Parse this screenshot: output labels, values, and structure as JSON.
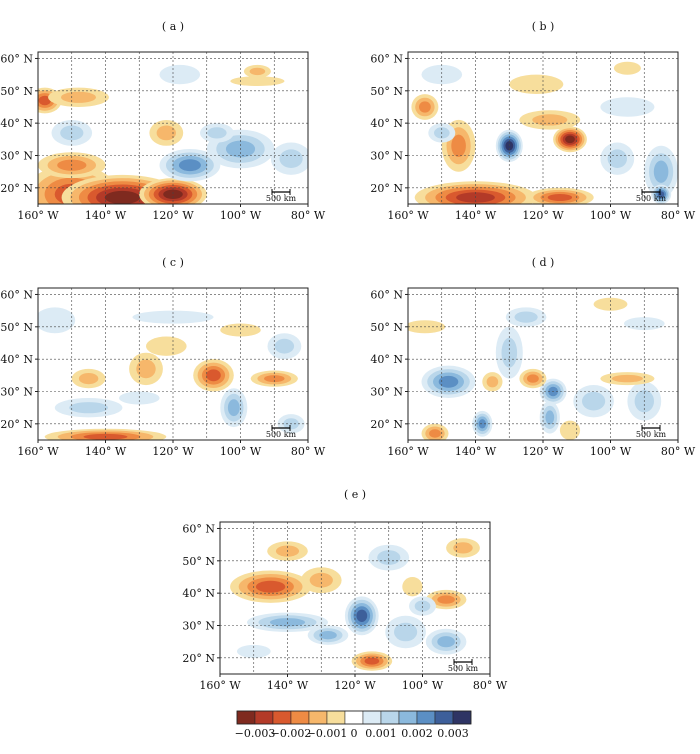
{
  "colors": {
    "frame": "#222222",
    "grid": "#444444",
    "page": "#ffffff"
  },
  "x_ticks": [
    "160° W",
    "140° W",
    "120° W",
    "100° W",
    "80° W"
  ],
  "y_ticks": [
    "60° N",
    "50° N",
    "40° N",
    "30° N",
    "20° N"
  ],
  "scale_bar_label": "500 km",
  "panels": [
    {
      "id": "a",
      "label": "( a )"
    },
    {
      "id": "b",
      "label": "( b )"
    },
    {
      "id": "c",
      "label": "( c )"
    },
    {
      "id": "d",
      "label": "( d )"
    },
    {
      "id": "e",
      "label": "( e )"
    }
  ],
  "colorbar": {
    "colors": [
      "#7f2a1f",
      "#b33a28",
      "#d9592e",
      "#ee8b44",
      "#f6b76b",
      "#f7de9c",
      "#ffffff",
      "#dcebf5",
      "#b9d6ea",
      "#8bb9dd",
      "#5b8fc4",
      "#3d5f9a",
      "#2e3464"
    ],
    "tick_labels": [
      "−0.003",
      "−0.002",
      "−0.001",
      "0",
      "0.001",
      "0.002",
      "0.003"
    ]
  },
  "blobs": {
    "a": [
      {
        "lon": -150,
        "lat": 18,
        "r": 14,
        "rx": 9,
        "v": -0.002
      },
      {
        "lon": -135,
        "lat": 17,
        "r": 18,
        "rx": 7,
        "v": -0.003
      },
      {
        "lon": -120,
        "lat": 18,
        "r": 10,
        "rx": 5,
        "v": -0.003
      },
      {
        "lon": -150,
        "lat": 27,
        "r": 10,
        "rx": 4,
        "v": -0.0015
      },
      {
        "lon": -158,
        "lat": 47,
        "r": 5,
        "rx": 4,
        "v": -0.002
      },
      {
        "lon": -148,
        "lat": 48,
        "r": 9,
        "rx": 3,
        "v": -0.001
      },
      {
        "lon": -122,
        "lat": 37,
        "r": 5,
        "rx": 4,
        "v": -0.001
      },
      {
        "lon": -95,
        "lat": 56,
        "r": 4,
        "rx": 2,
        "v": -0.0008
      },
      {
        "lon": -95,
        "lat": 53,
        "r": 8,
        "rx": 1.5,
        "v": -0.0005
      },
      {
        "lon": -150,
        "lat": 37,
        "r": 6,
        "rx": 4,
        "v": 0.0012
      },
      {
        "lon": -115,
        "lat": 27,
        "r": 9,
        "rx": 5,
        "v": 0.0018
      },
      {
        "lon": -100,
        "lat": 32,
        "r": 10,
        "rx": 6,
        "v": 0.0014
      },
      {
        "lon": -107,
        "lat": 37,
        "r": 5,
        "rx": 3,
        "v": 0.0012
      },
      {
        "lon": -85,
        "lat": 29,
        "r": 6,
        "rx": 5,
        "v": 0.001
      },
      {
        "lon": -118,
        "lat": 55,
        "r": 6,
        "rx": 3,
        "v": 0.0005
      }
    ],
    "b": [
      {
        "lon": -140,
        "lat": 17,
        "r": 18,
        "rx": 5,
        "v": -0.0025
      },
      {
        "lon": -115,
        "lat": 17,
        "r": 10,
        "rx": 3,
        "v": -0.002
      },
      {
        "lon": -145,
        "lat": 33,
        "r": 5,
        "rx": 8,
        "v": -0.0015
      },
      {
        "lon": -155,
        "lat": 45,
        "r": 4,
        "rx": 4,
        "v": -0.0015
      },
      {
        "lon": -112,
        "lat": 35,
        "r": 5,
        "rx": 4,
        "v": -0.003
      },
      {
        "lon": -118,
        "lat": 41,
        "r": 9,
        "rx": 3,
        "v": -0.001
      },
      {
        "lon": -122,
        "lat": 52,
        "r": 8,
        "rx": 3,
        "v": -0.0006
      },
      {
        "lon": -95,
        "lat": 57,
        "r": 4,
        "rx": 2,
        "v": -0.0006
      },
      {
        "lon": -130,
        "lat": 33,
        "r": 4,
        "rx": 5,
        "v": 0.003
      },
      {
        "lon": -98,
        "lat": 29,
        "r": 5,
        "rx": 5,
        "v": 0.0012
      },
      {
        "lon": -85,
        "lat": 25,
        "r": 5,
        "rx": 8,
        "v": 0.0016
      },
      {
        "lon": -85,
        "lat": 18,
        "r": 3,
        "rx": 3,
        "v": 0.0025
      },
      {
        "lon": -150,
        "lat": 37,
        "r": 4,
        "rx": 3,
        "v": 0.0008
      },
      {
        "lon": -95,
        "lat": 45,
        "r": 8,
        "rx": 3,
        "v": 0.0005
      },
      {
        "lon": -150,
        "lat": 55,
        "r": 6,
        "rx": 3,
        "v": 0.0005
      }
    ],
    "c": [
      {
        "lon": -140,
        "lat": 16,
        "r": 18,
        "rx": 2.5,
        "v": -0.002
      },
      {
        "lon": -108,
        "lat": 35,
        "r": 6,
        "rx": 5,
        "v": -0.0022
      },
      {
        "lon": -90,
        "lat": 34,
        "r": 7,
        "rx": 2.5,
        "v": -0.0015
      },
      {
        "lon": -128,
        "lat": 37,
        "r": 5,
        "rx": 5,
        "v": -0.001
      },
      {
        "lon": -145,
        "lat": 34,
        "r": 5,
        "rx": 3,
        "v": -0.0008
      },
      {
        "lon": -122,
        "lat": 44,
        "r": 6,
        "rx": 3,
        "v": -0.0007
      },
      {
        "lon": -100,
        "lat": 49,
        "r": 6,
        "rx": 2,
        "v": -0.0005
      },
      {
        "lon": -102,
        "lat": 25,
        "r": 4,
        "rx": 6,
        "v": 0.0015
      },
      {
        "lon": -145,
        "lat": 25,
        "r": 10,
        "rx": 3,
        "v": 0.0008
      },
      {
        "lon": -155,
        "lat": 52,
        "r": 6,
        "rx": 4,
        "v": 0.0007
      },
      {
        "lon": -120,
        "lat": 53,
        "r": 12,
        "rx": 2,
        "v": 0.0005
      },
      {
        "lon": -87,
        "lat": 44,
        "r": 5,
        "rx": 4,
        "v": 0.0008
      },
      {
        "lon": -130,
        "lat": 28,
        "r": 6,
        "rx": 2,
        "v": 0.0007
      },
      {
        "lon": -85,
        "lat": 20,
        "r": 4,
        "rx": 3,
        "v": 0.0008
      }
    ],
    "d": [
      {
        "lon": -148,
        "lat": 33,
        "r": 8,
        "rx": 5,
        "v": 0.0018
      },
      {
        "lon": -117,
        "lat": 30,
        "r": 4,
        "rx": 4,
        "v": 0.0022
      },
      {
        "lon": -118,
        "lat": 22,
        "r": 3,
        "rx": 5,
        "v": 0.0015
      },
      {
        "lon": -138,
        "lat": 20,
        "r": 3,
        "rx": 4,
        "v": 0.0018
      },
      {
        "lon": -130,
        "lat": 42,
        "r": 4,
        "rx": 8,
        "v": 0.001
      },
      {
        "lon": -105,
        "lat": 27,
        "r": 6,
        "rx": 5,
        "v": 0.0012
      },
      {
        "lon": -90,
        "lat": 27,
        "r": 5,
        "rx": 6,
        "v": 0.0008
      },
      {
        "lon": -125,
        "lat": 53,
        "r": 6,
        "rx": 3,
        "v": 0.0008
      },
      {
        "lon": -90,
        "lat": 51,
        "r": 6,
        "rx": 2,
        "v": 0.0006
      },
      {
        "lon": -152,
        "lat": 17,
        "r": 4,
        "rx": 3,
        "v": -0.0015
      },
      {
        "lon": -123,
        "lat": 34,
        "r": 4,
        "rx": 3,
        "v": -0.0015
      },
      {
        "lon": -95,
        "lat": 34,
        "r": 8,
        "rx": 2,
        "v": -0.0012
      },
      {
        "lon": -135,
        "lat": 33,
        "r": 3,
        "rx": 3,
        "v": -0.0008
      },
      {
        "lon": -155,
        "lat": 50,
        "r": 6,
        "rx": 2,
        "v": -0.0007
      },
      {
        "lon": -100,
        "lat": 57,
        "r": 5,
        "rx": 2,
        "v": -0.0006
      },
      {
        "lon": -112,
        "lat": 18,
        "r": 3,
        "rx": 3,
        "v": -0.0007
      }
    ],
    "e": [
      {
        "lon": -145,
        "lat": 42,
        "r": 12,
        "rx": 5,
        "v": -0.0018
      },
      {
        "lon": -130,
        "lat": 44,
        "r": 6,
        "rx": 4,
        "v": -0.0009
      },
      {
        "lon": -115,
        "lat": 19,
        "r": 6,
        "rx": 3,
        "v": -0.002
      },
      {
        "lon": -93,
        "lat": 38,
        "r": 6,
        "rx": 3,
        "v": -0.0015
      },
      {
        "lon": -140,
        "lat": 53,
        "r": 6,
        "rx": 3,
        "v": -0.0008
      },
      {
        "lon": -88,
        "lat": 54,
        "r": 5,
        "rx": 3,
        "v": -0.0008
      },
      {
        "lon": -103,
        "lat": 42,
        "r": 3,
        "rx": 3,
        "v": -0.0007
      },
      {
        "lon": -118,
        "lat": 33,
        "r": 5,
        "rx": 6,
        "v": 0.0026
      },
      {
        "lon": -140,
        "lat": 31,
        "r": 12,
        "rx": 3,
        "v": 0.0015
      },
      {
        "lon": -128,
        "lat": 27,
        "r": 6,
        "rx": 3,
        "v": 0.0014
      },
      {
        "lon": -105,
        "lat": 28,
        "r": 6,
        "rx": 5,
        "v": 0.0012
      },
      {
        "lon": -93,
        "lat": 25,
        "r": 6,
        "rx": 4,
        "v": 0.0014
      },
      {
        "lon": -110,
        "lat": 51,
        "r": 6,
        "rx": 4,
        "v": 0.0008
      },
      {
        "lon": -100,
        "lat": 36,
        "r": 4,
        "rx": 3,
        "v": 0.0008
      },
      {
        "lon": -150,
        "lat": 22,
        "r": 5,
        "rx": 2,
        "v": 0.0006
      }
    ]
  }
}
